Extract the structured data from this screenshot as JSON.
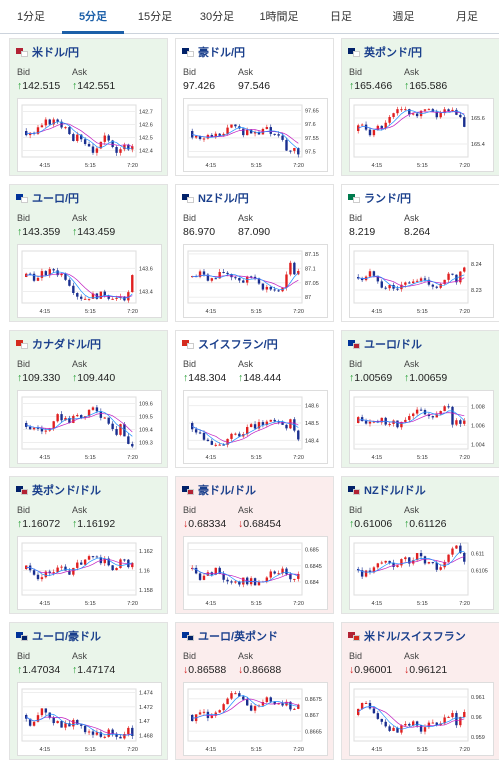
{
  "tabs": [
    {
      "label": "1分足",
      "active": false
    },
    {
      "label": "5分足",
      "active": true
    },
    {
      "label": "15分足",
      "active": false
    },
    {
      "label": "30分足",
      "active": false
    },
    {
      "label": "1時間足",
      "active": false
    },
    {
      "label": "日足",
      "active": false
    },
    {
      "label": "週足",
      "active": false
    },
    {
      "label": "月足",
      "active": false
    }
  ],
  "labels": {
    "bid": "Bid",
    "ask": "Ask"
  },
  "colors": {
    "up_bg": "#eaf5ea",
    "down_bg": "#fbeded",
    "up_arrow": "#1a9a2a",
    "down_arrow": "#d42020",
    "candle_up": "#e02020",
    "candle_down": "#1a2f8f",
    "ma_line": "#c020c0"
  },
  "cards": [
    {
      "pair": "米ドル/円",
      "flag": "us-jp-flag-icon",
      "trend": "up",
      "bid": "142.515",
      "ask": "142.551",
      "bid_dir": "up",
      "ask_dir": "up",
      "chart_data": {
        "type": "candlestick",
        "x_ticks": [
          "4:15",
          "5:15",
          "7:20"
        ],
        "y_ticks": [
          "142.7",
          "142.6",
          "142.5",
          "142.4"
        ],
        "ylim": [
          142.35,
          142.75
        ]
      }
    },
    {
      "pair": "豪ドル/円",
      "flag": "au-jp-flag-icon",
      "trend": "neutral",
      "bid": "97.426",
      "ask": "97.546",
      "bid_dir": "none",
      "ask_dir": "none",
      "chart_data": {
        "type": "candlestick",
        "x_ticks": [
          "4:15",
          "5:15",
          "7:20"
        ],
        "y_ticks": [
          "97.65",
          "97.6",
          "97.55",
          "97.5"
        ],
        "ylim": [
          97.48,
          97.67
        ]
      }
    },
    {
      "pair": "英ポンド/円",
      "flag": "gb-jp-flag-icon",
      "trend": "up",
      "bid": "165.466",
      "ask": "165.586",
      "bid_dir": "up",
      "ask_dir": "up",
      "chart_data": {
        "type": "candlestick",
        "x_ticks": [
          "4:15",
          "5:15",
          "7:20"
        ],
        "y_ticks": [
          "165.6",
          "165.4"
        ],
        "ylim": [
          165.3,
          165.7
        ]
      }
    },
    {
      "pair": "ユーロ/円",
      "flag": "eu-jp-flag-icon",
      "trend": "up",
      "bid": "143.359",
      "ask": "143.459",
      "bid_dir": "up",
      "ask_dir": "up",
      "chart_data": {
        "type": "candlestick",
        "x_ticks": [
          "4:15",
          "5:15",
          "7:20"
        ],
        "y_ticks": [
          "143.6",
          "143.4"
        ],
        "ylim": [
          143.3,
          143.75
        ]
      }
    },
    {
      "pair": "NZドル/円",
      "flag": "nz-jp-flag-icon",
      "trend": "neutral",
      "bid": "86.970",
      "ask": "87.090",
      "bid_dir": "none",
      "ask_dir": "none",
      "chart_data": {
        "type": "candlestick",
        "x_ticks": [
          "4:15",
          "5:15",
          "7:20"
        ],
        "y_ticks": [
          "87.15",
          "87.1",
          "87.05",
          "87"
        ],
        "ylim": [
          86.98,
          87.16
        ]
      }
    },
    {
      "pair": "ランド/円",
      "flag": "za-jp-flag-icon",
      "trend": "neutral",
      "bid": "8.219",
      "ask": "8.264",
      "bid_dir": "none",
      "ask_dir": "none",
      "chart_data": {
        "type": "candlestick",
        "x_ticks": [
          "4:15",
          "5:15",
          "7:20"
        ],
        "y_ticks": [
          "8.24",
          "8.23"
        ],
        "ylim": [
          8.225,
          8.245
        ]
      }
    },
    {
      "pair": "カナダドル/円",
      "flag": "ca-jp-flag-icon",
      "trend": "up",
      "bid": "109.330",
      "ask": "109.440",
      "bid_dir": "up",
      "ask_dir": "up",
      "chart_data": {
        "type": "candlestick",
        "x_ticks": [
          "4:15",
          "5:15",
          "7:20"
        ],
        "y_ticks": [
          "109.6",
          "109.5",
          "109.4",
          "109.3"
        ],
        "ylim": [
          109.25,
          109.65
        ]
      }
    },
    {
      "pair": "スイスフラン/円",
      "flag": "ch-jp-flag-icon",
      "trend": "neutral",
      "bid": "148.304",
      "ask": "148.444",
      "bid_dir": "up",
      "ask_dir": "up",
      "chart_data": {
        "type": "candlestick",
        "x_ticks": [
          "4:15",
          "5:15",
          "7:20"
        ],
        "y_ticks": [
          "148.6",
          "148.5",
          "148.4"
        ],
        "ylim": [
          148.35,
          148.65
        ]
      }
    },
    {
      "pair": "ユーロ/ドル",
      "flag": "eu-us-flag-icon",
      "trend": "up",
      "bid": "1.00569",
      "ask": "1.00659",
      "bid_dir": "up",
      "ask_dir": "up",
      "chart_data": {
        "type": "candlestick",
        "x_ticks": [
          "4:15",
          "5:15",
          "7:20"
        ],
        "y_ticks": [
          "1.008",
          "1.006",
          "1.004"
        ],
        "ylim": [
          1.0035,
          1.009
        ]
      }
    },
    {
      "pair": "英ポンド/ドル",
      "flag": "gb-us-flag-icon",
      "trend": "up",
      "bid": "1.16072",
      "ask": "1.16192",
      "bid_dir": "up",
      "ask_dir": "up",
      "chart_data": {
        "type": "candlestick",
        "x_ticks": [
          "4:15",
          "5:15",
          "7:20"
        ],
        "y_ticks": [
          "1.162",
          "1.16",
          "1.158"
        ],
        "ylim": [
          1.1575,
          1.1628
        ]
      }
    },
    {
      "pair": "豪ドル/ドル",
      "flag": "au-us-flag-icon",
      "trend": "down",
      "bid": "0.68334",
      "ask": "0.68454",
      "bid_dir": "down",
      "ask_dir": "down",
      "chart_data": {
        "type": "candlestick",
        "x_ticks": [
          "4:15",
          "5:15",
          "7:20"
        ],
        "y_ticks": [
          "0.685",
          "0.6845",
          "0.684"
        ],
        "ylim": [
          0.6836,
          0.6852
        ]
      }
    },
    {
      "pair": "NZドル/ドル",
      "flag": "nz-us-flag-icon",
      "trend": "up",
      "bid": "0.61006",
      "ask": "0.61126",
      "bid_dir": "up",
      "ask_dir": "up",
      "chart_data": {
        "type": "candlestick",
        "x_ticks": [
          "4:15",
          "5:15",
          "7:20"
        ],
        "y_ticks": [
          "0.611",
          "0.6105"
        ],
        "ylim": [
          0.6098,
          0.6113
        ]
      }
    },
    {
      "pair": "ユーロ/豪ドル",
      "flag": "eu-au-flag-icon",
      "trend": "up",
      "bid": "1.47034",
      "ask": "1.47174",
      "bid_dir": "up",
      "ask_dir": "up",
      "chart_data": {
        "type": "candlestick",
        "x_ticks": [
          "4:15",
          "5:15",
          "7:20"
        ],
        "y_ticks": [
          "1.474",
          "1.472",
          "1.47",
          "1.468"
        ],
        "ylim": [
          1.4672,
          1.4745
        ]
      }
    },
    {
      "pair": "ユーロ/英ポンド",
      "flag": "eu-gb-flag-icon",
      "trend": "down",
      "bid": "0.86588",
      "ask": "0.86688",
      "bid_dir": "down",
      "ask_dir": "down",
      "chart_data": {
        "type": "candlestick",
        "x_ticks": [
          "4:15",
          "5:15",
          "7:20"
        ],
        "y_ticks": [
          "0.8675",
          "0.867",
          "0.8665"
        ],
        "ylim": [
          0.8662,
          0.8678
        ]
      }
    },
    {
      "pair": "米ドル/スイスフラン",
      "flag": "us-ch-flag-icon",
      "trend": "down",
      "bid": "0.96001",
      "ask": "0.96121",
      "bid_dir": "down",
      "ask_dir": "down",
      "chart_data": {
        "type": "candlestick",
        "x_ticks": [
          "4:15",
          "5:15",
          "7:20"
        ],
        "y_ticks": [
          "0.961",
          "0.96",
          "0.959"
        ],
        "ylim": [
          0.9588,
          0.9614
        ]
      }
    }
  ]
}
